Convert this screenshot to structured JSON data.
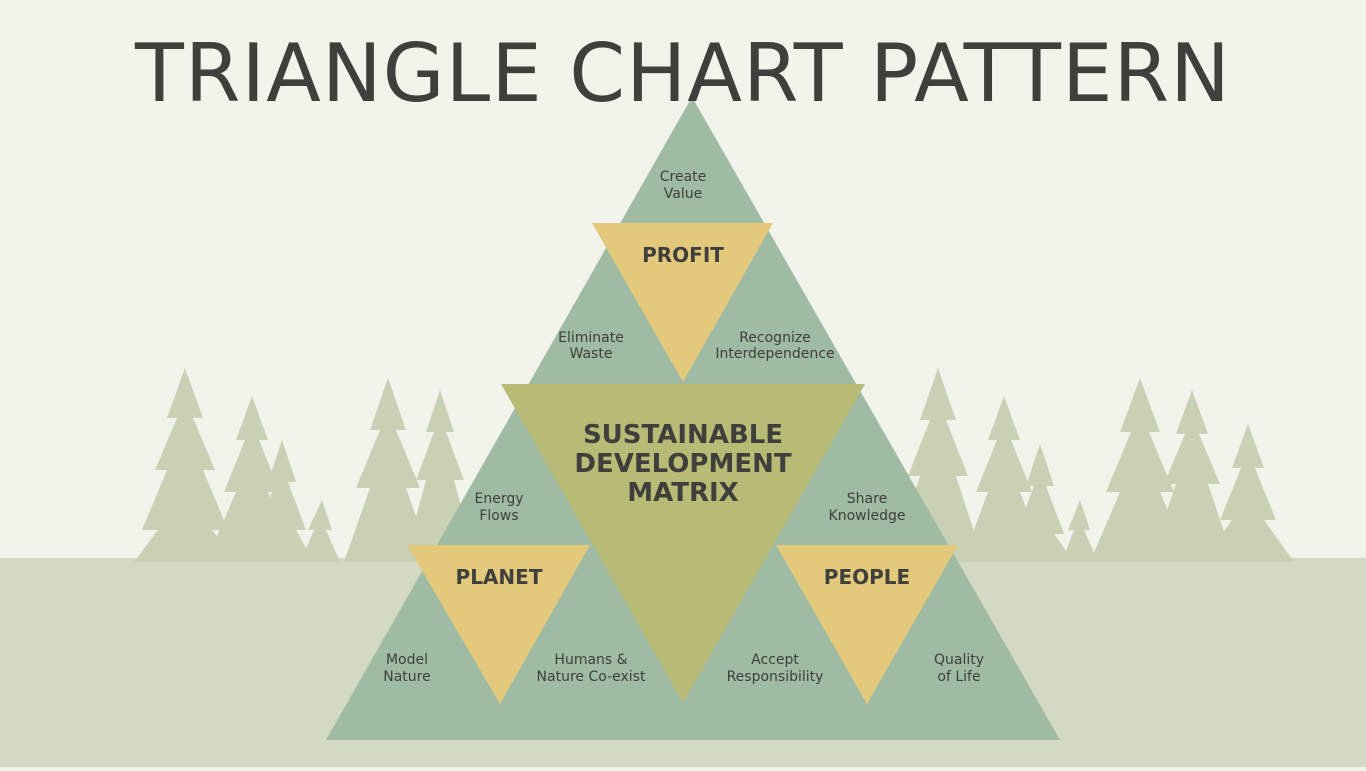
{
  "title": "TRIANGLE CHART PATTERN",
  "colors": {
    "background": "#f2f3eb",
    "ground": "#d3d9c2",
    "trees": "#c9d1b5",
    "outer_triangle": "#9fbba4",
    "center_triangle": "#b8bb75",
    "pillar_triangle": "#e2c97b",
    "text_dark": "#3f3f3c"
  },
  "center": {
    "line1": "SUSTAINABLE",
    "line2": "DEVELOPMENT",
    "line3": "MATRIX"
  },
  "pillars": {
    "profit": "PROFIT",
    "planet": "PLANET",
    "people": "PEOPLE"
  },
  "segments": {
    "create_value": {
      "line1": "Create",
      "line2": "Value"
    },
    "eliminate_waste": {
      "line1": "Eliminate",
      "line2": "Waste"
    },
    "recognize_interdependence": {
      "line1": "Recognize",
      "line2": "Interdependence"
    },
    "energy_flows": {
      "line1": "Energy",
      "line2": "Flows"
    },
    "share_knowledge": {
      "line1": "Share",
      "line2": "Knowledge"
    },
    "model_nature": {
      "line1": "Model",
      "line2": "Nature"
    },
    "humans_nature": {
      "line1": "Humans &",
      "line2": "Nature Co-exist"
    },
    "accept_responsibility": {
      "line1": "Accept",
      "line2": "Responsibility"
    },
    "quality_of_life": {
      "line1": "Quality",
      "line2": "of Life"
    }
  }
}
